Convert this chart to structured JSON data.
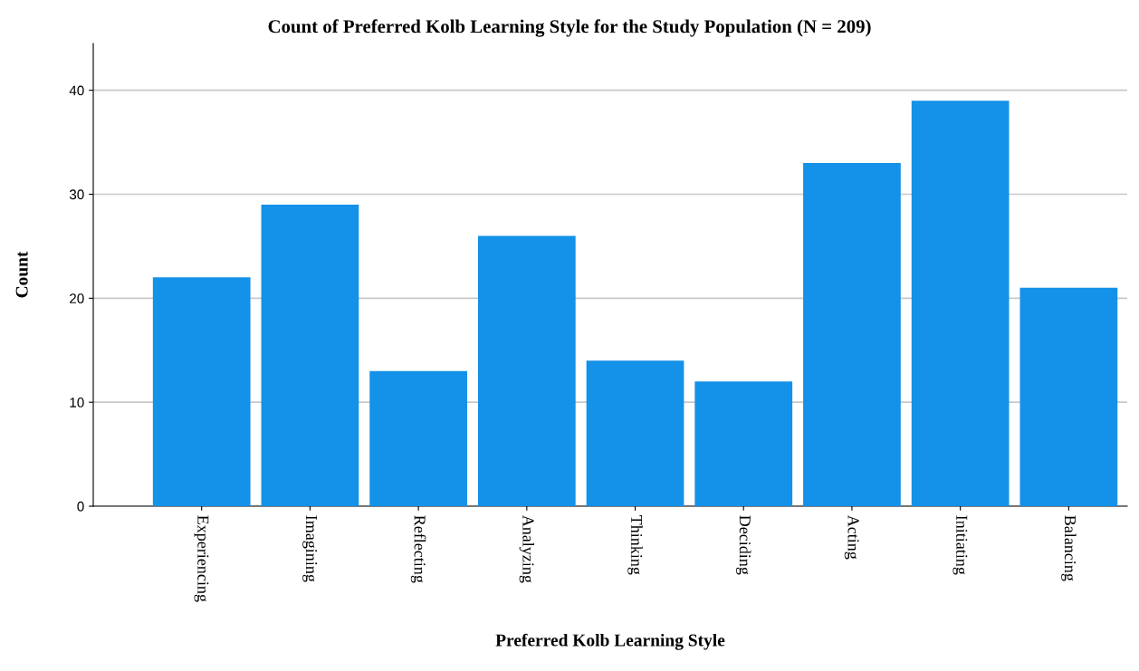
{
  "chart_data": {
    "type": "bar",
    "title": "Count of Preferred Kolb Learning Style for the Study Population (N = 209)",
    "xlabel": "Preferred Kolb Learning Style",
    "ylabel": "Count",
    "categories": [
      "Experiencing",
      "Imagining",
      "Reflecting",
      "Analyzing",
      "Thinking",
      "Deciding",
      "Acting",
      "Initiating",
      "Balancing"
    ],
    "values": [
      22,
      29,
      13,
      26,
      14,
      12,
      33,
      39,
      21
    ],
    "color": "#1491e8",
    "ylim": [
      0,
      44.5
    ],
    "yticks": [
      0,
      10,
      20,
      30,
      40
    ],
    "grid": "y",
    "legend": false
  }
}
